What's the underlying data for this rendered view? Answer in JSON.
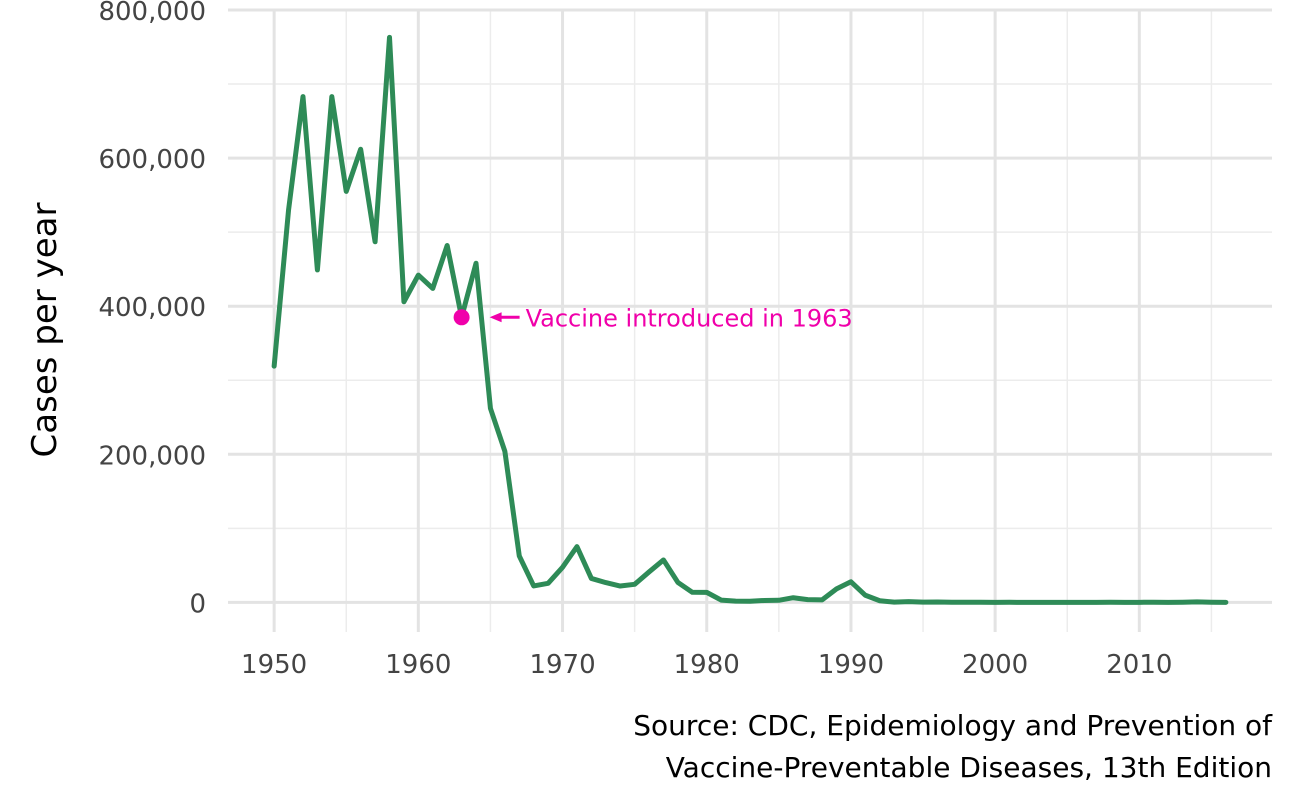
{
  "chart_data": {
    "type": "line",
    "title": "",
    "xlabel": "",
    "ylabel": "Cases per year",
    "caption_lines": [
      "Source: CDC, Epidemiology and Prevention of",
      "Vaccine-Preventable Diseases, 13th Edition"
    ],
    "xlim": [
      1946.8,
      1918.5
    ],
    "xlim_note": "",
    "ylim": [
      -40000,
      800000
    ],
    "x_ticks": [
      1950,
      1960,
      1970,
      1980,
      1990,
      2000,
      2010
    ],
    "x_tick_labels": [
      "1950",
      "1960",
      "1970",
      "1980",
      "1990",
      "2000",
      "2010"
    ],
    "y_ticks": [
      0,
      200000,
      400000,
      600000,
      800000
    ],
    "y_tick_labels": [
      "0",
      "200,000",
      "400,000",
      "600,000",
      "800,000"
    ],
    "grid": true,
    "line_color": "#2e8b57",
    "series": [
      {
        "name": "",
        "x": [
          1950,
          1951,
          1952,
          1953,
          1954,
          1955,
          1956,
          1957,
          1958,
          1959,
          1960,
          1961,
          1962,
          1963,
          1964,
          1965,
          1966,
          1967,
          1968,
          1969,
          1970,
          1971,
          1972,
          1973,
          1974,
          1975,
          1976,
          1977,
          1978,
          1979,
          1980,
          1981,
          1982,
          1983,
          1984,
          1985,
          1986,
          1987,
          1988,
          1989,
          1990,
          1991,
          1992,
          1993,
          1994,
          1995,
          1996,
          1997,
          1998,
          1999,
          2000,
          2001,
          2002,
          2003,
          2004,
          2005,
          2006,
          2007,
          2008,
          2009,
          2010,
          2011,
          2012,
          2013,
          2014,
          2015,
          2016
        ],
        "values": [
          319000,
          530000,
          683000,
          449000,
          683000,
          555000,
          612000,
          487000,
          763000,
          406000,
          442000,
          424000,
          482000,
          385000,
          458000,
          262000,
          204000,
          62700,
          22200,
          25800,
          47300,
          75300,
          32300,
          26700,
          22100,
          24400,
          41100,
          57300,
          26900,
          13600,
          13500,
          3100,
          1700,
          1500,
          2600,
          2800,
          6300,
          3700,
          3400,
          18200,
          27800,
          9600,
          2200,
          300,
          1000,
          300,
          500,
          138,
          100,
          100,
          86,
          116,
          44,
          56,
          37,
          66,
          55,
          43,
          140,
          71,
          63,
          220,
          55,
          187,
          667,
          188,
          86
        ]
      }
    ],
    "annotation": {
      "text": "Vaccine introduced in 1963",
      "x": 1963,
      "y": 385000,
      "color": "#f000aa"
    }
  }
}
